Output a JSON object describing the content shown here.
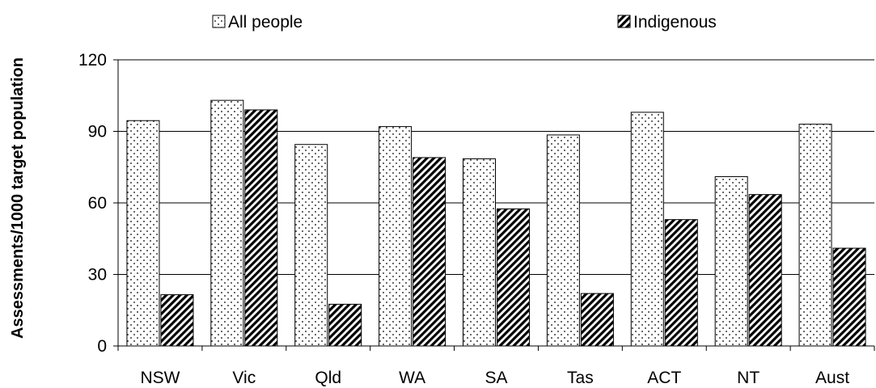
{
  "chart_data": {
    "type": "bar",
    "title": "",
    "xlabel": "",
    "ylabel": "Assessments/1000 target population",
    "ylim": [
      0,
      120
    ],
    "yticks": [
      0,
      30,
      60,
      90,
      120
    ],
    "ytick_labels": [
      "0",
      "30",
      "60",
      "90",
      "120"
    ],
    "grid": "horizontal",
    "legend_position": "top",
    "categories": [
      "NSW",
      "Vic",
      "Qld",
      "WA",
      "SA",
      "Tas",
      "ACT",
      "NT",
      "Aust"
    ],
    "series": [
      {
        "name": "All people",
        "pattern": "dotted",
        "color": "#000000",
        "values": [
          94.5,
          103,
          84.5,
          92,
          78.5,
          88.5,
          98,
          71,
          93
        ]
      },
      {
        "name": "Indigenous",
        "pattern": "diagonal-hatch",
        "color": "#000000",
        "values": [
          21.5,
          99,
          17.5,
          79,
          57.5,
          22,
          53,
          63.5,
          41
        ]
      }
    ]
  }
}
